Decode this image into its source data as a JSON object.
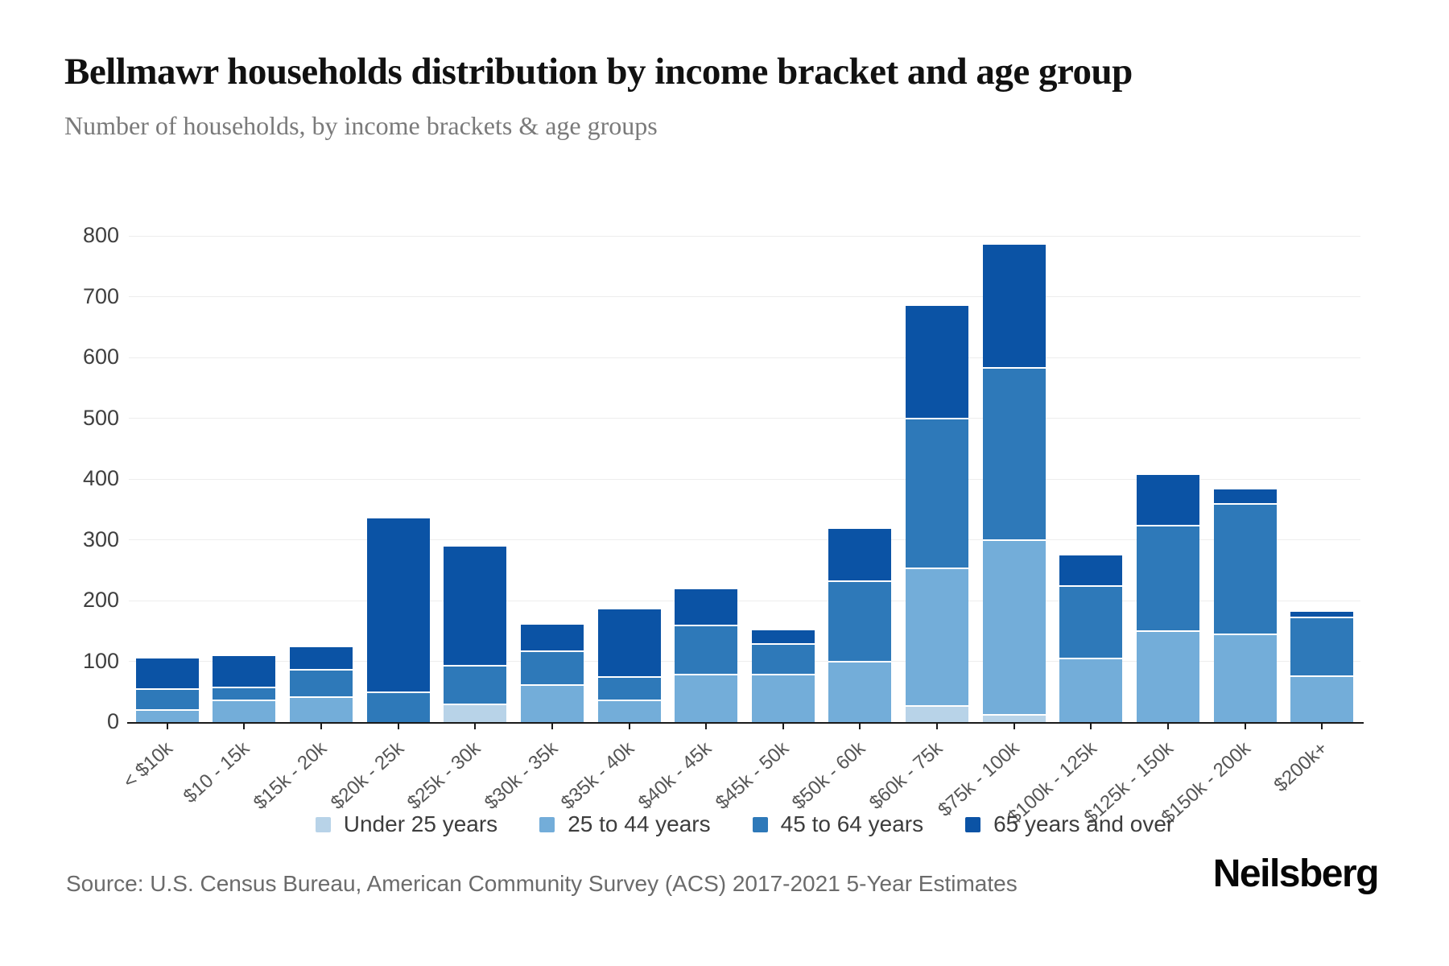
{
  "header": {
    "title": "Bellmawr households distribution by income bracket and age group",
    "subtitle": "Number of households, by income brackets & age groups"
  },
  "chart_data": {
    "type": "bar",
    "stacked": true,
    "categories": [
      "< $10k",
      "$10 - 15k",
      "$15k - 20k",
      "$20k - 25k",
      "$25k - 30k",
      "$30k - 35k",
      "$35k - 40k",
      "$40k - 45k",
      "$45k - 50k",
      "$50k - 60k",
      "$60k - 75k",
      "$75k - 100k",
      "$100k - 125k",
      "$125k - 150k",
      "$150k - 200k",
      "$200k+"
    ],
    "series": [
      {
        "name": "Under 25 years",
        "color": "#b8d3e8",
        "values": [
          0,
          0,
          0,
          0,
          28,
          0,
          0,
          0,
          0,
          0,
          25,
          10,
          0,
          0,
          0,
          0
        ]
      },
      {
        "name": "25 to 44 years",
        "color": "#73add9",
        "values": [
          18,
          34,
          40,
          0,
          0,
          60,
          34,
          77,
          77,
          98,
          226,
          288,
          103,
          149,
          143,
          74
        ]
      },
      {
        "name": "45 to 64 years",
        "color": "#2e79b9",
        "values": [
          35,
          22,
          45,
          48,
          63,
          55,
          39,
          80,
          50,
          132,
          247,
          283,
          120,
          173,
          215,
          97
        ]
      },
      {
        "name": "65 years and over",
        "color": "#0b53a5",
        "values": [
          52,
          52,
          38,
          287,
          198,
          45,
          112,
          62,
          24,
          88,
          187,
          204,
          51,
          85,
          25,
          10
        ]
      }
    ],
    "totals": [
      105,
      108,
      123,
      335,
      289,
      160,
      185,
      219,
      151,
      318,
      685,
      785,
      274,
      407,
      383,
      181
    ],
    "ylabel": "",
    "xlabel": "",
    "ylim": [
      0,
      800
    ],
    "yticks": [
      0,
      100,
      200,
      300,
      400,
      500,
      600,
      700,
      800
    ],
    "grid": true,
    "legend_position": "bottom",
    "separator_color": "#ffffff",
    "grid_color": "#ededed",
    "axis_color": "#1a1a1a"
  },
  "footer": {
    "source": "Source: U.S. Census Bureau, American Community Survey (ACS) 2017-2021 5-Year Estimates",
    "brand": "Neilsberg"
  }
}
